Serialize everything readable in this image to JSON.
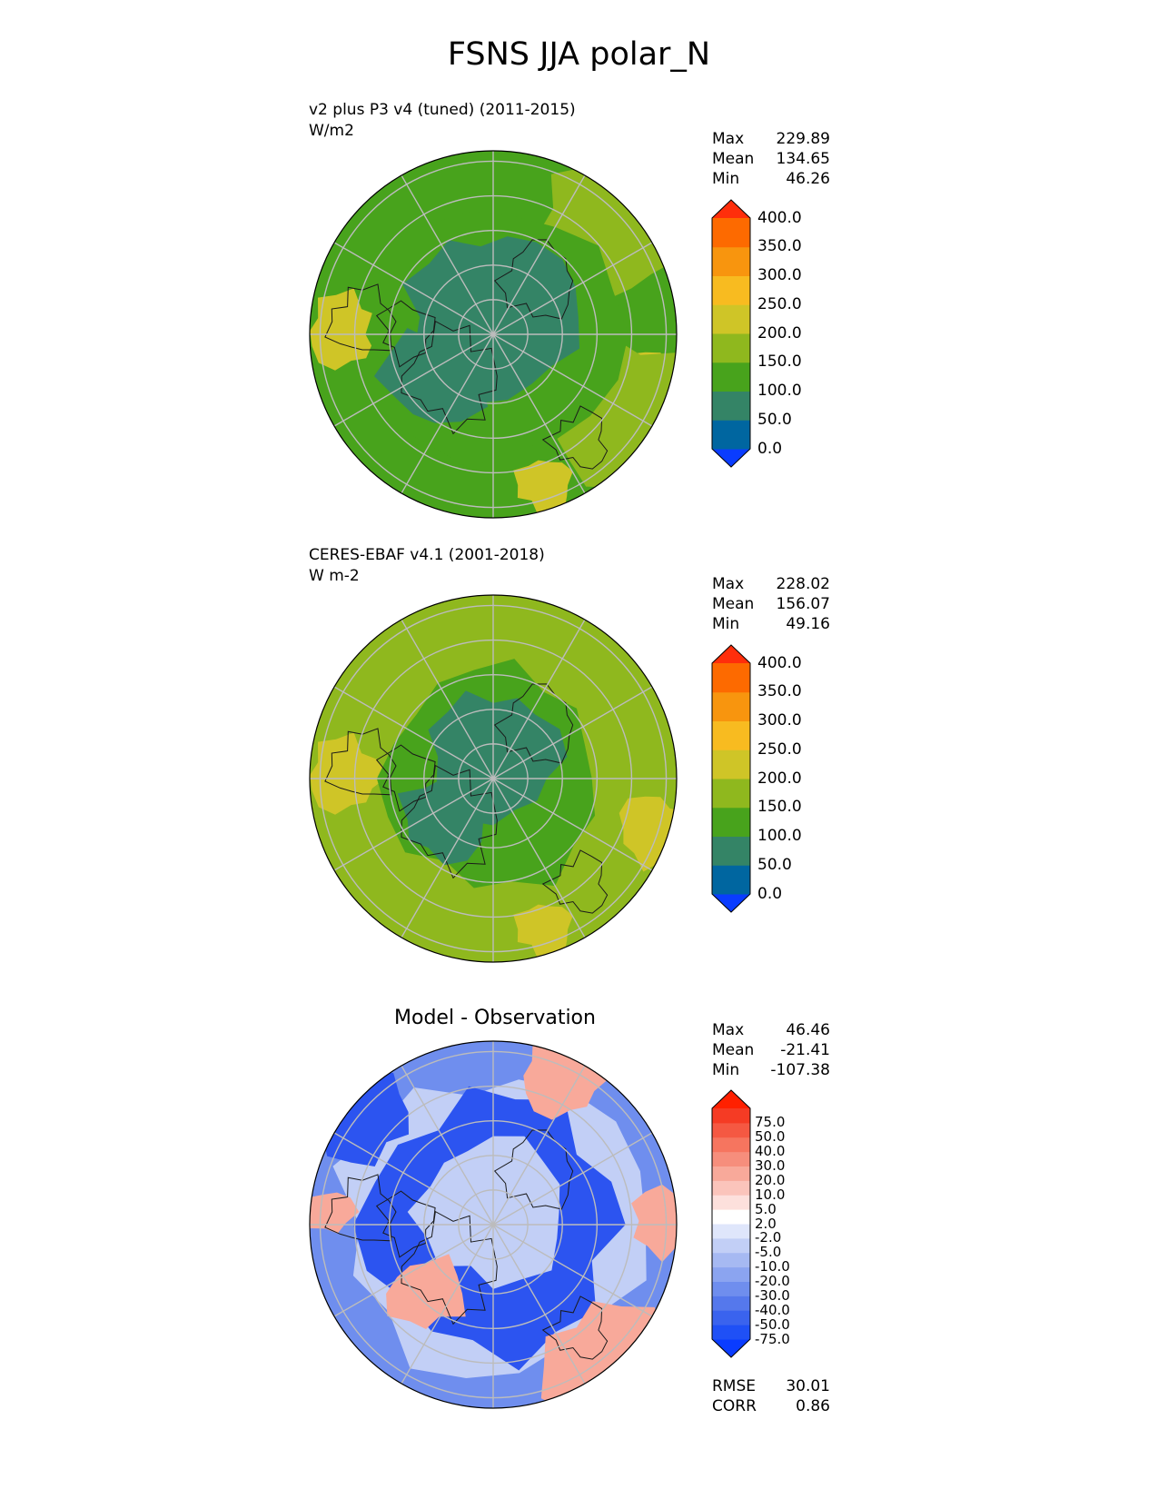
{
  "figure_title": "FSNS JJA polar_N",
  "panels": [
    {
      "label": "v2 plus P3 v4 (tuned) (2011-2015)",
      "units": "W/m2",
      "stats": {
        "max_label": "Max",
        "max": "229.89",
        "mean_label": "Mean",
        "mean": "134.65",
        "min_label": "Min",
        "min": "46.26"
      }
    },
    {
      "label": "CERES-EBAF v4.1 (2001-2018)",
      "units": "W m-2",
      "stats": {
        "max_label": "Max",
        "max": "228.02",
        "mean_label": "Mean",
        "mean": "156.07",
        "min_label": "Min",
        "min": "49.16"
      }
    },
    {
      "title": "Model - Observation",
      "stats": {
        "max_label": "Max",
        "max": "46.46",
        "mean_label": "Mean",
        "mean": "-21.41",
        "min_label": "Min",
        "min": "-107.38"
      },
      "metrics": {
        "rmse_label": "RMSE",
        "rmse": "30.01",
        "corr_label": "CORR",
        "corr": "0.86"
      }
    }
  ],
  "colorbars": {
    "field": {
      "ticks": [
        "400.0",
        "350.0",
        "300.0",
        "250.0",
        "200.0",
        "150.0",
        "100.0",
        "50.0",
        "0.0"
      ],
      "colors": [
        "#0a3cff",
        "#0066a0",
        "#348466",
        "#48a31c",
        "#8fb81e",
        "#cfc527",
        "#f8bb20",
        "#f8950e",
        "#fd6a00",
        "#ff2e0b"
      ]
    },
    "diff": {
      "ticks": [
        "75.0",
        "50.0",
        "40.0",
        "30.0",
        "20.0",
        "10.0",
        "5.0",
        "2.0",
        "-2.0",
        "-5.0",
        "-10.0",
        "-20.0",
        "-30.0",
        "-40.0",
        "-50.0",
        "-75.0"
      ],
      "colors": [
        "#0a3cff",
        "#1f50f6",
        "#3a63ee",
        "#5578ec",
        "#6f8eee",
        "#8ba4f0",
        "#a6b9f2",
        "#c2cff6",
        "#dfe6fb",
        "#ffffff",
        "#fde0dc",
        "#fbc4bb",
        "#f8a99a",
        "#f68e7c",
        "#f6755f",
        "#f55842",
        "#f53b24",
        "#ff2000"
      ]
    }
  },
  "map_colors": {
    "field_low": "#348466",
    "field_mid": "#48a31c",
    "field_high": "#8fb81e",
    "field_top": "#cfc527",
    "diff_strong_neg": "#2c54f0",
    "diff_neg": "#6f8eee",
    "diff_light_neg": "#c2cff6",
    "diff_pos": "#f8a99a"
  }
}
